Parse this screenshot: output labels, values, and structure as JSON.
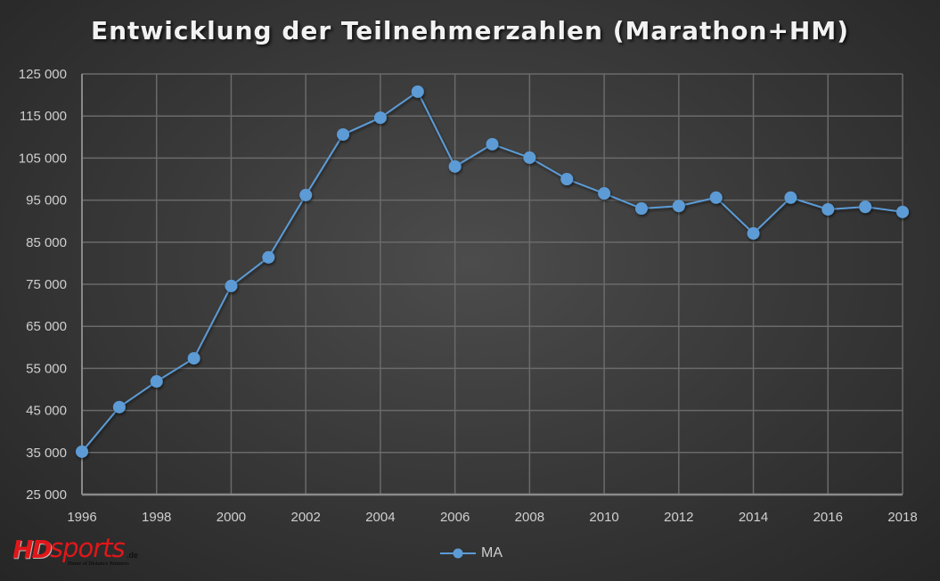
{
  "title": "Entwicklung der Teilnehmerzahlen (Marathon+HM)",
  "legend": {
    "series_label": "MA",
    "marker": "circle-line-marker"
  },
  "logo": {
    "main": "HD",
    "secondary": "sports",
    "suffix": ".de",
    "tagline": "Home of Distance Runners"
  },
  "colors": {
    "series": "#5b9bd5",
    "grid": "#6a6a6a",
    "axis": "#8a8a8a",
    "text": "#cfcfcf",
    "title": "#f2f2f2",
    "logo_red": "#e0171a"
  },
  "y_axis": {
    "ticks": [
      "125 000",
      "115 000",
      "105 000",
      "95 000",
      "85 000",
      "75 000",
      "65 000",
      "55 000",
      "45 000",
      "35 000",
      "25 000"
    ]
  },
  "x_axis": {
    "ticks": [
      "1996",
      "1998",
      "2000",
      "2002",
      "2004",
      "2006",
      "2008",
      "2010",
      "2012",
      "2014",
      "2016",
      "2018"
    ]
  },
  "chart_data": {
    "type": "line",
    "title": "Entwicklung der Teilnehmerzahlen (Marathon+HM)",
    "xlabel": "",
    "ylabel": "",
    "x": [
      1996,
      1997,
      1998,
      1999,
      2000,
      2001,
      2002,
      2003,
      2004,
      2005,
      2006,
      2007,
      2008,
      2009,
      2010,
      2011,
      2012,
      2013,
      2014,
      2015,
      2016,
      2017,
      2018
    ],
    "series": [
      {
        "name": "MA",
        "values": [
          35200,
          45800,
          51900,
          57400,
          74600,
          81400,
          96200,
          110600,
          114600,
          120800,
          103000,
          108300,
          105100,
          100000,
          96600,
          93000,
          93600,
          95600,
          87100,
          95600,
          92800,
          93400,
          92200
        ]
      }
    ],
    "ylim": [
      25000,
      125000
    ],
    "ytick_step": 10000,
    "xtick_labels": [
      "1996",
      "1998",
      "2000",
      "2002",
      "2004",
      "2006",
      "2008",
      "2010",
      "2012",
      "2014",
      "2016",
      "2018"
    ],
    "grid": true,
    "legend_position": "bottom"
  }
}
